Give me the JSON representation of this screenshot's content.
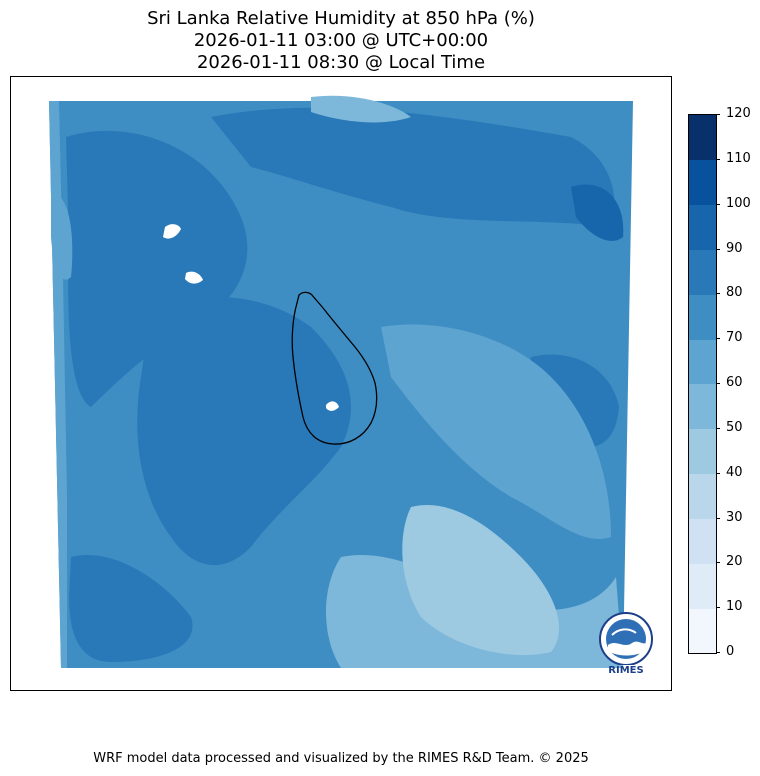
{
  "title": {
    "line1": "Sri Lanka Relative Humidity at 850 hPa (%)",
    "line2": "2026-01-11 03:00 @ UTC+00:00",
    "line3": "2026-01-11 08:30 @ Local Time"
  },
  "colorbar": {
    "ticks": [
      "0",
      "10",
      "20",
      "30",
      "40",
      "50",
      "60",
      "70",
      "80",
      "90",
      "100",
      "110",
      "120"
    ],
    "colors": [
      "#f1f7fd",
      "#dfebf7",
      "#cfe1f2",
      "#b9d6eb",
      "#9dc9e1",
      "#7db8da",
      "#5da4d0",
      "#3e8ec4",
      "#2979b9",
      "#1765ab",
      "#08519c",
      "#08306b"
    ]
  },
  "logo": {
    "name": "rimes-logo",
    "text": "RIMES"
  },
  "footer": "WRF model data processed and visualized by the RIMES R&D Team. © 2025"
}
